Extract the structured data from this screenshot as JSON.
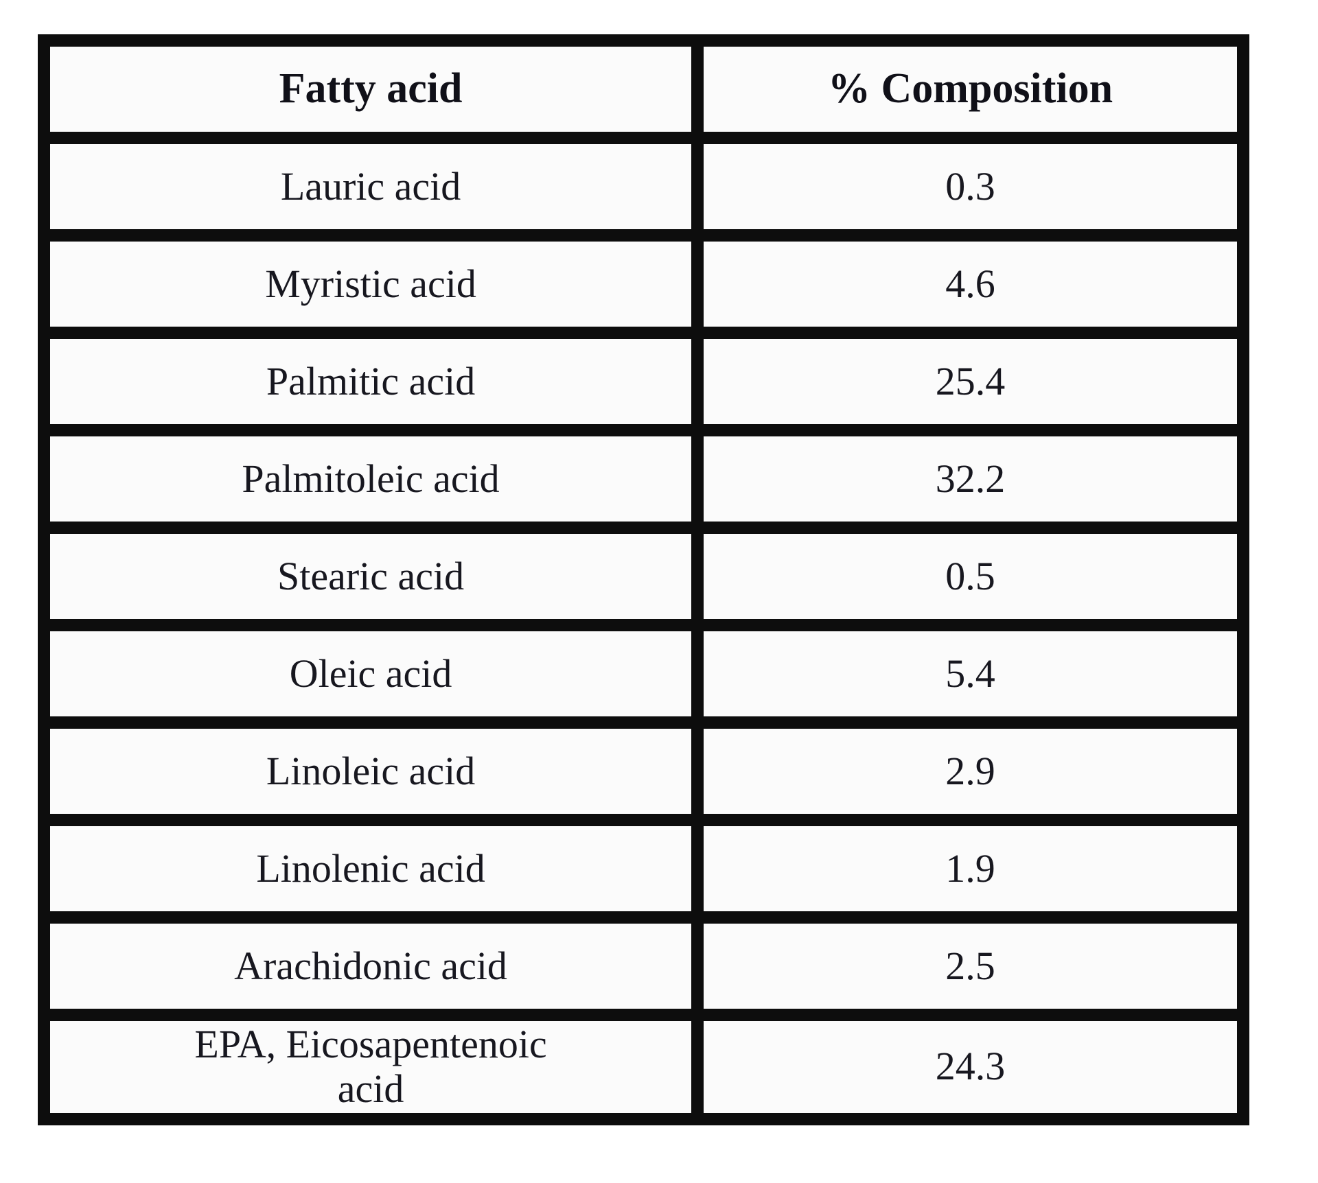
{
  "page": {
    "background": "#ffffff",
    "border_color": "#0d0d0d",
    "cell_background": "#fbfbfb",
    "text_color": "#17171f"
  },
  "table": {
    "headers": [
      "Fatty acid",
      "% Composition"
    ],
    "rows": [
      [
        "Lauric acid",
        "0.3"
      ],
      [
        "Myristic acid",
        "4.6"
      ],
      [
        "Palmitic acid",
        "25.4"
      ],
      [
        "Palmitoleic acid",
        "32.2"
      ],
      [
        "Stearic acid",
        "0.5"
      ],
      [
        "Oleic acid",
        "5.4"
      ],
      [
        "Linoleic acid",
        "2.9"
      ],
      [
        "Linolenic acid",
        "1.9"
      ],
      [
        "Arachidonic acid",
        "2.5"
      ],
      [
        "EPA, Eicosapentenoic acid",
        "24.3"
      ]
    ]
  },
  "chart_data": {
    "type": "table",
    "title": "",
    "columns": [
      "Fatty acid",
      "% Composition"
    ],
    "categories": [
      "Lauric acid",
      "Myristic acid",
      "Palmitic acid",
      "Palmitoleic acid",
      "Stearic acid",
      "Oleic acid",
      "Linoleic acid",
      "Linolenic acid",
      "Arachidonic acid",
      "EPA, Eicosapentenoic acid"
    ],
    "values": [
      0.3,
      4.6,
      25.4,
      32.2,
      0.5,
      5.4,
      2.9,
      1.9,
      2.5,
      24.3
    ],
    "value_unit": "percent",
    "layout": {
      "grid": "full-borders",
      "header_row": true,
      "text_align": "center"
    }
  }
}
